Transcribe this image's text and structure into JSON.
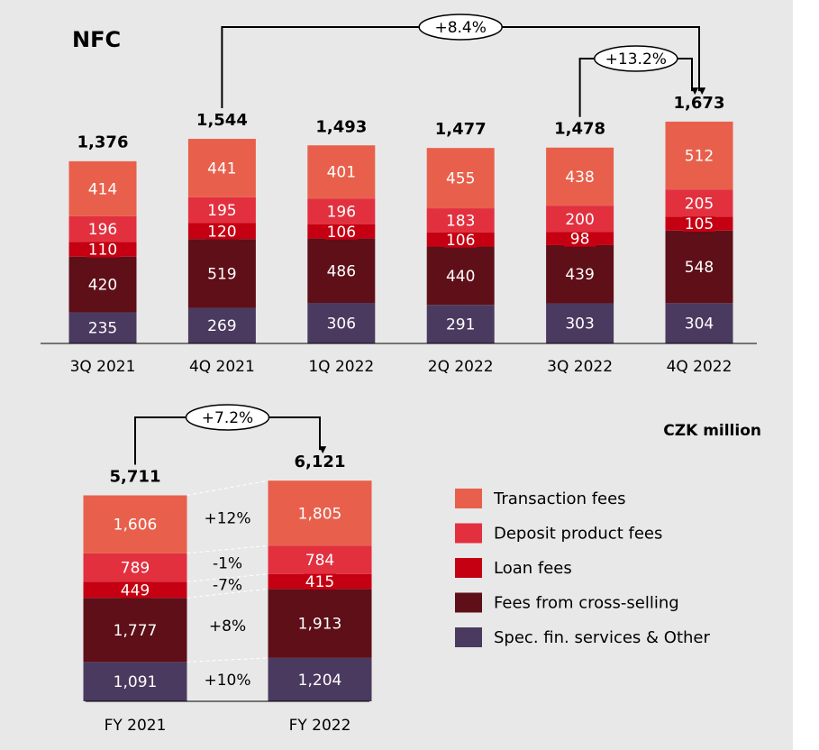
{
  "chart_data": [
    {
      "type": "bar",
      "stacked": true,
      "title": "NFC",
      "categories": [
        "3Q 2021",
        "4Q 2021",
        "1Q 2022",
        "2Q 2022",
        "3Q 2022",
        "4Q 2022"
      ],
      "series": [
        {
          "name": "Transaction fees",
          "color": "#e8604c",
          "values": [
            414,
            441,
            401,
            455,
            438,
            512
          ]
        },
        {
          "name": "Deposit product fees",
          "color": "#e2303f",
          "values": [
            196,
            195,
            196,
            183,
            200,
            205
          ]
        },
        {
          "name": "Loan fees",
          "color": "#c40012",
          "values": [
            110,
            120,
            106,
            106,
            98,
            105
          ]
        },
        {
          "name": "Fees from cross-selling",
          "color": "#5e0f18",
          "values": [
            420,
            519,
            486,
            440,
            439,
            548
          ]
        },
        {
          "name": "Spec. fin. services & Other",
          "color": "#4b3a5f",
          "values": [
            235,
            269,
            306,
            291,
            303,
            304
          ]
        }
      ],
      "totals": [
        1376,
        1544,
        1493,
        1477,
        1478,
        1673
      ],
      "total_labels": [
        "1,376",
        "1,544",
        "1,493",
        "1,477",
        "1,478",
        "1,673"
      ],
      "annotations": [
        {
          "label": "+8.4%",
          "from": "4Q 2021",
          "to": "4Q 2022"
        },
        {
          "label": "+13.2%",
          "from": "3Q 2022",
          "to": "4Q 2022"
        }
      ]
    },
    {
      "type": "bar",
      "stacked": true,
      "unit_label": "CZK million",
      "legend": "right",
      "categories": [
        "FY 2021",
        "FY 2022"
      ],
      "series": [
        {
          "color": "#e8604c",
          "values": [
            1606,
            1805
          ],
          "value_labels": [
            "1,606",
            "1,805"
          ]
        },
        {
          "color": "#e2303f",
          "values": [
            789,
            784
          ]
        },
        {
          "color": "#c40012",
          "values": [
            449,
            415
          ]
        },
        {
          "color": "#5e0f18",
          "values": [
            1777,
            1913
          ],
          "value_labels": [
            "1,777",
            "1,913"
          ]
        },
        {
          "color": "#4b3a5f",
          "values": [
            1091,
            1204
          ],
          "value_labels": [
            "1,091",
            "1,204"
          ]
        }
      ],
      "changes": [
        "+12%",
        "-1%",
        "-7%",
        "+8%",
        "+10%"
      ],
      "totals": [
        5711,
        6121
      ],
      "total_labels": [
        "5,711",
        "6,121"
      ],
      "annotations": [
        {
          "label": "+7.2%",
          "from": "FY 2021",
          "to": "FY 2022"
        }
      ]
    }
  ]
}
